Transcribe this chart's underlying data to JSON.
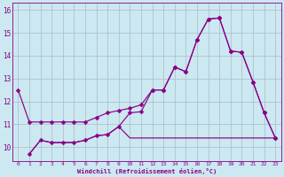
{
  "xlabel": "Windchill (Refroidissement éolien,°C)",
  "bg_color": "#cce8f0",
  "line_color": "#880088",
  "grid_color": "#aabbcc",
  "xlim": [
    -0.5,
    23.5
  ],
  "ylim": [
    9.4,
    16.3
  ],
  "xticks": [
    0,
    1,
    2,
    3,
    4,
    5,
    6,
    7,
    8,
    9,
    10,
    11,
    12,
    13,
    14,
    15,
    16,
    17,
    18,
    19,
    20,
    21,
    22,
    23
  ],
  "yticks": [
    10,
    11,
    12,
    13,
    14,
    15,
    16
  ],
  "line1_x": [
    0,
    1,
    2,
    3,
    4,
    5,
    6,
    7,
    8,
    9,
    10,
    11,
    12,
    13,
    14,
    15,
    16,
    17,
    18,
    19,
    20,
    21,
    22,
    23
  ],
  "line1_y": [
    12.5,
    11.1,
    11.1,
    11.1,
    11.1,
    11.1,
    11.1,
    11.3,
    11.5,
    11.6,
    11.7,
    11.85,
    12.5,
    12.5,
    13.5,
    13.3,
    14.7,
    15.6,
    15.65,
    14.2,
    14.15,
    12.85,
    11.5,
    10.4
  ],
  "line2_x": [
    1,
    2,
    3,
    4,
    5,
    6,
    7,
    8,
    9,
    10,
    11,
    12,
    13,
    14,
    15,
    16,
    17,
    18,
    19,
    20,
    21,
    22,
    23
  ],
  "line2_y": [
    9.7,
    10.3,
    10.2,
    10.2,
    10.2,
    10.3,
    10.5,
    10.55,
    10.9,
    11.5,
    11.55,
    12.5,
    12.5,
    13.5,
    13.3,
    14.7,
    15.6,
    15.65,
    14.2,
    14.15,
    12.85,
    11.5,
    10.4
  ],
  "line3_x": [
    1,
    2,
    3,
    4,
    5,
    6,
    7,
    8,
    9,
    10,
    11,
    12,
    13,
    14,
    15,
    16,
    17,
    18,
    19,
    20,
    21,
    22,
    23
  ],
  "line3_y": [
    9.7,
    10.3,
    10.2,
    10.2,
    10.2,
    10.3,
    10.5,
    10.55,
    10.9,
    10.4,
    10.4,
    10.4,
    10.4,
    10.4,
    10.4,
    10.4,
    10.4,
    10.4,
    10.4,
    10.4,
    10.4,
    10.4,
    10.4
  ]
}
